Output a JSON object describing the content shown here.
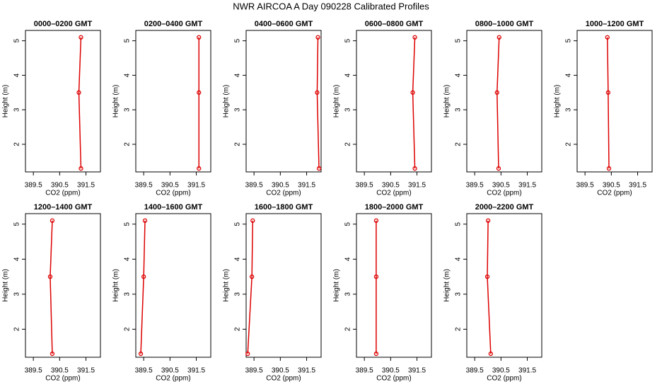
{
  "title": "NWR AIRCOA A  Day 090228  Calibrated Profiles",
  "chart_data": [
    {
      "type": "line",
      "title": "0000–0200 GMT",
      "xlabel": "CO2 (ppm)",
      "ylabel": "Height (m)",
      "color": "#dd0000",
      "x": [
        391.31,
        391.23,
        391.31
      ],
      "values": [
        5.1,
        3.5,
        1.3
      ],
      "xlim": [
        389.2,
        392.05
      ],
      "ylim": [
        1.2,
        5.3
      ],
      "xticks": [
        389.5,
        390.5,
        391.5
      ],
      "yticks": [
        2,
        3,
        4,
        5
      ]
    },
    {
      "type": "line",
      "title": "0200–0400 GMT",
      "xlabel": "CO2 (ppm)",
      "ylabel": "Height (m)",
      "color": "#dd0000",
      "x": [
        391.6,
        391.6,
        391.6
      ],
      "values": [
        5.1,
        3.5,
        1.3
      ],
      "xlim": [
        389.2,
        392.05
      ],
      "ylim": [
        1.2,
        5.3
      ],
      "xticks": [
        389.5,
        390.5,
        391.5
      ],
      "yticks": [
        2,
        3,
        4,
        5
      ]
    },
    {
      "type": "line",
      "title": "0400–0600 GMT",
      "xlabel": "CO2 (ppm)",
      "ylabel": "Height (m)",
      "color": "#dd0000",
      "x": [
        391.93,
        391.9,
        391.97
      ],
      "values": [
        5.1,
        3.5,
        1.3
      ],
      "xlim": [
        389.2,
        392.05
      ],
      "ylim": [
        1.2,
        5.3
      ],
      "xticks": [
        389.5,
        390.5,
        391.5
      ],
      "yticks": [
        2,
        3,
        4,
        5
      ]
    },
    {
      "type": "line",
      "title": "0600–0800 GMT",
      "xlabel": "CO2 (ppm)",
      "ylabel": "Height (m)",
      "color": "#dd0000",
      "x": [
        391.42,
        391.34,
        391.42
      ],
      "values": [
        5.1,
        3.5,
        1.3
      ],
      "xlim": [
        389.2,
        392.05
      ],
      "ylim": [
        1.2,
        5.3
      ],
      "xticks": [
        389.5,
        390.5,
        391.5
      ],
      "yticks": [
        2,
        3,
        4,
        5
      ]
    },
    {
      "type": "line",
      "title": "0800–1000 GMT",
      "xlabel": "CO2 (ppm)",
      "ylabel": "Height (m)",
      "color": "#dd0000",
      "x": [
        390.43,
        390.35,
        390.41
      ],
      "values": [
        5.1,
        3.5,
        1.3
      ],
      "xlim": [
        389.2,
        392.05
      ],
      "ylim": [
        1.2,
        5.3
      ],
      "xticks": [
        389.5,
        390.5,
        391.5
      ],
      "yticks": [
        2,
        3,
        4,
        5
      ]
    },
    {
      "type": "line",
      "title": "1000–1200 GMT",
      "xlabel": "CO2 (ppm)",
      "ylabel": "Height (m)",
      "color": "#dd0000",
      "x": [
        390.35,
        390.38,
        390.41
      ],
      "values": [
        5.1,
        3.5,
        1.3
      ],
      "xlim": [
        389.2,
        392.05
      ],
      "ylim": [
        1.2,
        5.3
      ],
      "xticks": [
        389.5,
        390.5,
        391.5
      ],
      "yticks": [
        2,
        3,
        4,
        5
      ]
    },
    {
      "type": "line",
      "title": "1200–1400 GMT",
      "xlabel": "CO2 (ppm)",
      "ylabel": "Height (m)",
      "color": "#dd0000",
      "x": [
        390.22,
        390.14,
        390.22
      ],
      "values": [
        5.1,
        3.5,
        1.3
      ],
      "xlim": [
        389.2,
        392.05
      ],
      "ylim": [
        1.2,
        5.3
      ],
      "xticks": [
        389.5,
        390.5,
        391.5
      ],
      "yticks": [
        2,
        3,
        4,
        5
      ]
    },
    {
      "type": "line",
      "title": "1400–1600 GMT",
      "xlabel": "CO2 (ppm)",
      "ylabel": "Height (m)",
      "color": "#dd0000",
      "x": [
        389.55,
        389.5,
        389.39
      ],
      "values": [
        5.1,
        3.5,
        1.3
      ],
      "xlim": [
        389.2,
        392.05
      ],
      "ylim": [
        1.2,
        5.3
      ],
      "xticks": [
        389.5,
        390.5,
        391.5
      ],
      "yticks": [
        2,
        3,
        4,
        5
      ]
    },
    {
      "type": "line",
      "title": "1600–1800 GMT",
      "xlabel": "CO2 (ppm)",
      "ylabel": "Height (m)",
      "color": "#dd0000",
      "x": [
        389.45,
        389.42,
        389.26
      ],
      "values": [
        5.1,
        3.5,
        1.3
      ],
      "xlim": [
        389.2,
        392.05
      ],
      "ylim": [
        1.2,
        5.3
      ],
      "xticks": [
        389.5,
        390.5,
        391.5
      ],
      "yticks": [
        2,
        3,
        4,
        5
      ]
    },
    {
      "type": "line",
      "title": "1800–2000 GMT",
      "xlabel": "CO2 (ppm)",
      "ylabel": "Height (m)",
      "color": "#dd0000",
      "x": [
        389.95,
        389.95,
        389.95
      ],
      "values": [
        5.1,
        3.5,
        1.3
      ],
      "xlim": [
        389.2,
        392.05
      ],
      "ylim": [
        1.2,
        5.3
      ],
      "xticks": [
        389.5,
        390.5,
        391.5
      ],
      "yticks": [
        2,
        3,
        4,
        5
      ]
    },
    {
      "type": "line",
      "title": "2000–2200 GMT",
      "xlabel": "CO2 (ppm)",
      "ylabel": "Height (m)",
      "color": "#dd0000",
      "x": [
        390.01,
        389.98,
        390.11
      ],
      "values": [
        5.1,
        3.5,
        1.3
      ],
      "xlim": [
        389.2,
        392.05
      ],
      "ylim": [
        1.2,
        5.3
      ],
      "xticks": [
        389.5,
        390.5,
        391.5
      ],
      "yticks": [
        2,
        3,
        4,
        5
      ]
    }
  ]
}
